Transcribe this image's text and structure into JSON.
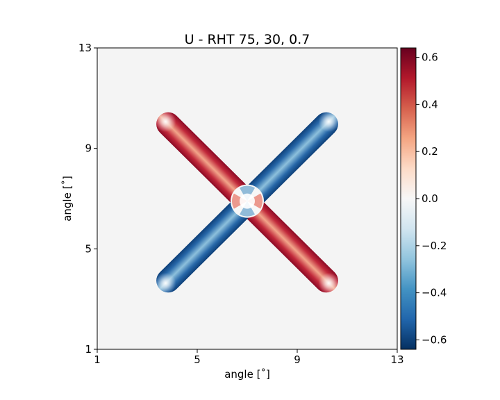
{
  "chart_data": {
    "type": "heatmap",
    "title": "U - RHT 75, 30, 0.7",
    "xlabel": "angle [$^\\circ$]",
    "xlabel_display": "angle [˚]",
    "ylabel": "angle [$^\\circ$]",
    "ylabel_display": "angle [˚]",
    "xlim": [
      1,
      13
    ],
    "ylim": [
      1,
      13
    ],
    "xticks": [
      1,
      5,
      9,
      13
    ],
    "yticks": [
      1,
      5,
      9,
      13
    ],
    "grid": false,
    "colormap": "RdBu_r",
    "colorbar": {
      "vmin": -0.64,
      "vmax": 0.64,
      "ticks": [
        -0.6,
        -0.4,
        -0.2,
        0.0,
        0.2,
        0.4,
        0.6
      ],
      "tick_labels": [
        "−0.6",
        "−0.4",
        "−0.2",
        "0.0",
        "0.2",
        "0.4",
        "0.6"
      ]
    },
    "background_value": 0.0,
    "background_color": "#f4f4f4",
    "features": [
      {
        "name": "diagonal-bar-descending",
        "start": [
          3.5,
          10.3
        ],
        "end": [
          10.5,
          3.4
        ],
        "value_edge": 0.64,
        "value_center": 0.25,
        "sign": "positive"
      },
      {
        "name": "diagonal-bar-ascending",
        "start": [
          3.5,
          3.4
        ],
        "end": [
          10.5,
          10.3
        ],
        "value_edge": -0.64,
        "value_center": -0.25,
        "sign": "negative"
      }
    ],
    "intersection": [
      7.0,
      6.9
    ]
  }
}
